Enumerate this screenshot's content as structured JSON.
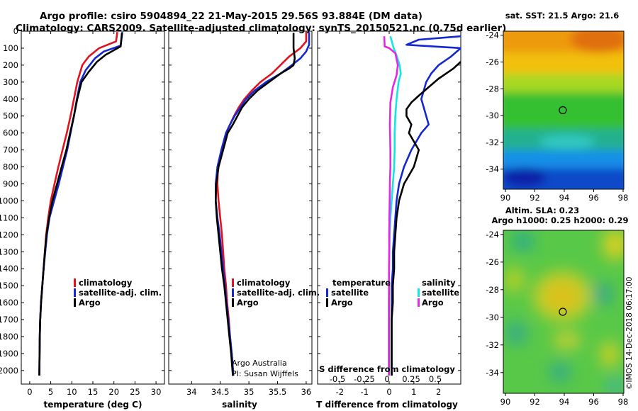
{
  "header": {
    "line1": "Argo profile: csiro 5904894_22 21-May-2015 29.56S 93.884E (DM data)",
    "line2": "Climatology: CARS2009. Satellite-adjusted climatology: synTS_20150521.nc (0.75d earlier)"
  },
  "colors": {
    "climatology": "#e0141e",
    "satellite": "#1428d2",
    "argo": "#000000",
    "satellite_s": "#14e6e6",
    "argo_s": "#e628e6"
  },
  "depth_ticks": [
    0,
    100,
    200,
    300,
    400,
    500,
    600,
    700,
    800,
    900,
    1000,
    1100,
    1200,
    1300,
    1400,
    1500,
    1600,
    1700,
    1800,
    1900,
    2000
  ],
  "credits": {
    "line1": "Argo Australia",
    "line2": "PI: Susan Wijffels"
  },
  "imos_stamp": "©IMOS 14-Dec-2018 06:17:00",
  "chart_data": [
    {
      "type": "line",
      "name": "temperature",
      "xlabel": "temperature (deg C)",
      "ylabel": "depth",
      "xlim": [
        -2,
        32
      ],
      "ylim": [
        2080,
        0
      ],
      "xticks": [
        0,
        5,
        10,
        15,
        20,
        25,
        30
      ],
      "legend": [
        "climatology",
        "satellite-adj. clim.",
        "Argo"
      ],
      "series": [
        {
          "name": "climatology",
          "color": "#e0141e",
          "x": [
            20.8,
            20.5,
            16.5,
            14.0,
            12.5,
            11.3,
            10.5,
            9.7,
            8.8,
            7.8,
            6.8,
            5.9,
            5.0,
            4.4,
            3.9,
            3.6,
            3.3,
            3.0,
            2.7,
            2.5,
            2.4,
            2.3
          ],
          "y": [
            5,
            60,
            100,
            150,
            200,
            300,
            400,
            500,
            600,
            700,
            800,
            900,
            1000,
            1100,
            1200,
            1300,
            1400,
            1500,
            1600,
            1700,
            1800,
            2030
          ]
        },
        {
          "name": "satellite-adj. clim.",
          "color": "#1428d2",
          "x": [
            22.0,
            21.6,
            17.6,
            15.5,
            13.3,
            12.0,
            11.2,
            10.5,
            9.7,
            8.9,
            7.9,
            6.9,
            5.8,
            4.7,
            4.1,
            3.7,
            3.3,
            3.0,
            2.7,
            2.5,
            2.4,
            2.3
          ],
          "y": [
            5,
            85,
            120,
            160,
            230,
            300,
            400,
            500,
            600,
            700,
            800,
            900,
            1000,
            1100,
            1200,
            1300,
            1400,
            1500,
            1600,
            1700,
            1800,
            2030
          ]
        },
        {
          "name": "Argo",
          "color": "#000000",
          "x": [
            21.9,
            21.6,
            18.0,
            16.0,
            14.0,
            12.3,
            11.3,
            10.5,
            9.6,
            8.7,
            7.6,
            6.5,
            5.4,
            4.6,
            4.0,
            3.6,
            3.3,
            3.0,
            2.7,
            2.5,
            2.4,
            2.3
          ],
          "y": [
            10,
            90,
            140,
            180,
            240,
            300,
            400,
            500,
            600,
            700,
            800,
            900,
            1000,
            1100,
            1200,
            1300,
            1400,
            1500,
            1600,
            1700,
            1800,
            2030
          ]
        }
      ]
    },
    {
      "type": "line",
      "name": "salinity",
      "xlabel": "salinity",
      "ylabel": "depth",
      "xlim": [
        33.6,
        36.1
      ],
      "ylim": [
        2080,
        0
      ],
      "xticks": [
        34,
        34.5,
        35,
        35.5,
        36
      ],
      "legend": [
        "climatology",
        "satellite-adj. clim.",
        "Argo"
      ],
      "series": [
        {
          "name": "climatology",
          "color": "#e0141e",
          "x": [
            36.0,
            36.0,
            35.9,
            35.7,
            35.55,
            35.4,
            35.2,
            35.05,
            34.92,
            34.82,
            34.74,
            34.67,
            34.6,
            34.52,
            34.46,
            34.45,
            34.47,
            34.5,
            34.53,
            34.55,
            34.57,
            34.6,
            34.62,
            34.65,
            34.67,
            34.7,
            34.73
          ],
          "y": [
            5,
            60,
            100,
            150,
            200,
            250,
            300,
            350,
            400,
            450,
            500,
            550,
            600,
            700,
            800,
            900,
            1000,
            1100,
            1200,
            1300,
            1400,
            1500,
            1600,
            1700,
            1800,
            1900,
            2030
          ]
        },
        {
          "name": "satellite-adj. clim.",
          "color": "#1428d2",
          "x": [
            36.05,
            36.05,
            36.0,
            35.9,
            35.75,
            35.55,
            35.3,
            35.1,
            34.95,
            34.85,
            34.75,
            34.67,
            34.6,
            34.52,
            34.45,
            34.42,
            34.42,
            34.45,
            34.49,
            34.52,
            34.55,
            34.58,
            34.61,
            34.64,
            34.67,
            34.7,
            34.73
          ],
          "y": [
            5,
            80,
            120,
            160,
            200,
            250,
            300,
            350,
            400,
            450,
            500,
            550,
            600,
            700,
            800,
            900,
            1000,
            1100,
            1200,
            1300,
            1400,
            1500,
            1600,
            1700,
            1800,
            1900,
            2030
          ]
        },
        {
          "name": "Argo",
          "color": "#000000",
          "x": [
            35.78,
            35.78,
            35.8,
            35.78,
            35.7,
            35.55,
            35.35,
            35.15,
            35.0,
            34.88,
            34.8,
            34.72,
            34.63,
            34.55,
            34.47,
            34.43,
            34.42,
            34.44,
            34.47,
            34.5,
            34.53,
            34.57,
            34.6,
            34.63,
            34.66,
            34.69,
            34.72
          ],
          "y": [
            10,
            100,
            160,
            200,
            220,
            250,
            300,
            350,
            400,
            450,
            500,
            550,
            600,
            700,
            800,
            900,
            1000,
            1100,
            1200,
            1300,
            1400,
            1500,
            1600,
            1700,
            1800,
            1900,
            2030
          ]
        }
      ]
    },
    {
      "type": "line",
      "name": "difference",
      "xlabel": "T difference from climatology",
      "xlabel_top": "S difference from climatology",
      "xlim": [
        -2.9,
        2.9
      ],
      "ylim": [
        2080,
        0
      ],
      "xticks": [
        -2,
        -1,
        0,
        1,
        2
      ],
      "s_ticks": [
        "-0.5",
        "-0.25",
        "0",
        "0.25",
        "0.5"
      ],
      "legend_headers": [
        "temperature",
        "salinity"
      ],
      "legend": [
        "satellite",
        "Argo",
        "satellite",
        "Argo"
      ],
      "series": [
        {
          "name": "T satellite",
          "color": "#1428d2",
          "x": [
            2.9,
            1.2,
            0.7,
            2.9,
            2.5,
            2.0,
            1.7,
            1.5,
            1.4,
            1.3,
            1.4,
            1.5,
            1.6,
            1.3,
            0.9,
            0.6,
            0.4,
            0.3,
            0.25,
            0.2,
            0.15,
            0.15,
            0.1,
            0.1,
            0.1,
            0.1,
            0.1
          ],
          "y": [
            30,
            50,
            80,
            100,
            150,
            200,
            250,
            300,
            350,
            400,
            450,
            500,
            550,
            600,
            700,
            800,
            900,
            1000,
            1100,
            1200,
            1300,
            1400,
            1500,
            1600,
            1700,
            1800,
            2030
          ]
        },
        {
          "name": "T Argo",
          "color": "#000000",
          "x": [
            2.9,
            2.6,
            2.0,
            1.6,
            1.2,
            0.9,
            0.7,
            0.7,
            0.9,
            0.8,
            1.0,
            1.2,
            1.1,
            1.0,
            0.8,
            0.6,
            0.5,
            0.4,
            0.3,
            0.25,
            0.2,
            0.2,
            0.15,
            0.15,
            0.1,
            0.1,
            0.1
          ],
          "y": [
            180,
            220,
            280,
            330,
            380,
            420,
            460,
            500,
            550,
            600,
            650,
            700,
            750,
            800,
            850,
            900,
            950,
            1000,
            1100,
            1200,
            1300,
            1400,
            1500,
            1600,
            1700,
            1800,
            2030
          ]
        },
        {
          "name": "S satellite",
          "color": "#14e6e6",
          "x": [
            0.05,
            0.18,
            0.32,
            0.42,
            0.47,
            0.38,
            0.3,
            0.25,
            0.22,
            0.22,
            0.2,
            0.15,
            0.1,
            0.05,
            0.02,
            0.01,
            0.0,
            -0.01,
            -0.02,
            -0.02,
            -0.02,
            -0.02
          ],
          "y": [
            30,
            100,
            150,
            200,
            250,
            300,
            400,
            500,
            600,
            700,
            800,
            900,
            1000,
            1100,
            1200,
            1300,
            1400,
            1500,
            1600,
            1700,
            1800,
            2030
          ]
        },
        {
          "name": "S Argo",
          "color": "#e628e6",
          "x": [
            -0.2,
            -0.18,
            0.0,
            0.25,
            0.35,
            0.3,
            0.15,
            0.05,
            0.03,
            0.05,
            0.05,
            0.03,
            0.02,
            0.01,
            0.0,
            0.0,
            -0.01,
            -0.01,
            -0.01,
            -0.01,
            -0.01,
            -0.01
          ],
          "y": [
            30,
            90,
            100,
            130,
            200,
            260,
            330,
            420,
            550,
            700,
            800,
            900,
            1000,
            1100,
            1200,
            1300,
            1400,
            1500,
            1600,
            1700,
            1800,
            2030
          ]
        }
      ]
    },
    {
      "type": "heatmap",
      "name": "sst_map",
      "title": "sat. SST: 21.5 Argo: 21.6",
      "xticks": [
        "90",
        "92",
        "94",
        "96",
        "98"
      ],
      "yticks": [
        "-24",
        "-26",
        "-28",
        "-30",
        "-32",
        "-34"
      ],
      "marker": {
        "lon": 93.9,
        "lat": -29.6
      }
    },
    {
      "type": "heatmap",
      "name": "sla_map",
      "title1": "Altim. SLA: 0.23",
      "title2": "Argo h1000: 0.25 h2000: 0.29",
      "xticks": [
        "90",
        "92",
        "94",
        "96",
        "98"
      ],
      "yticks": [
        "-24",
        "-26",
        "-28",
        "-30",
        "-32",
        "-34"
      ],
      "marker": {
        "lon": 93.9,
        "lat": -29.6
      }
    }
  ]
}
